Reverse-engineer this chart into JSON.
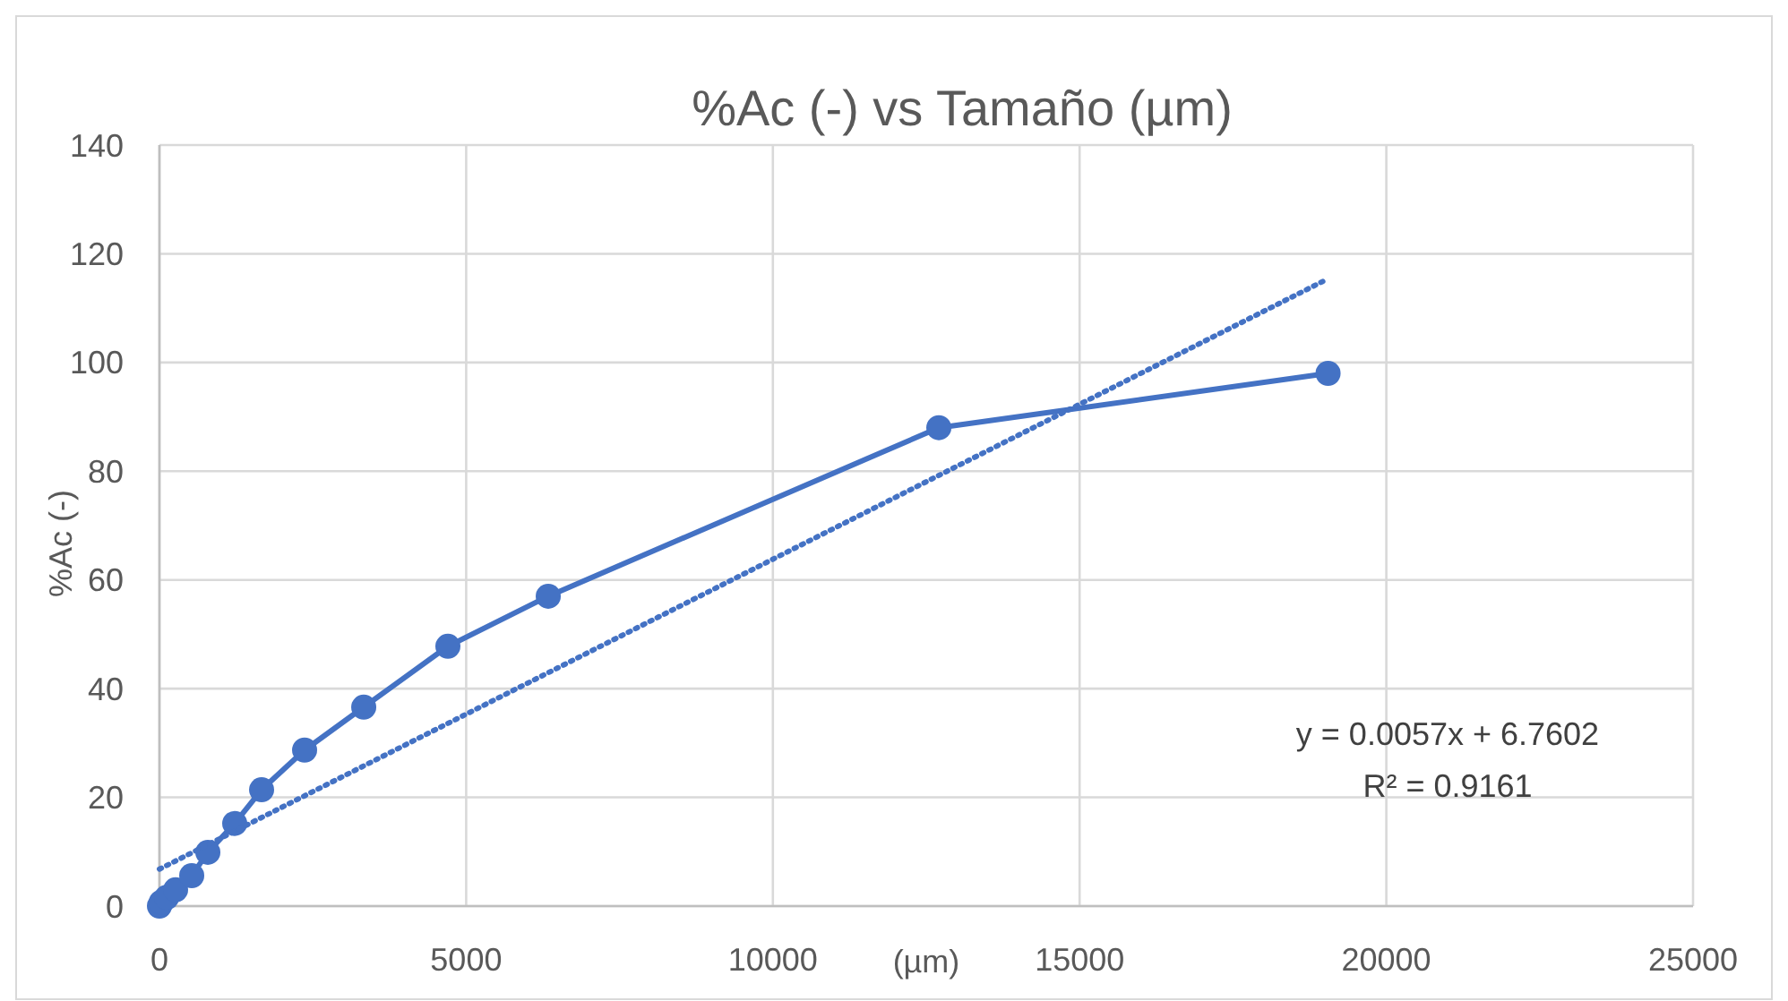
{
  "chart_data": {
    "type": "line",
    "title": "%Ac (-) vs Tamaño (µm)",
    "xlabel": "(µm)",
    "ylabel": "%Ac (-)",
    "xlim": [
      0,
      25000
    ],
    "xticks": [
      0,
      5000,
      10000,
      15000,
      20000,
      25000
    ],
    "ylim": [
      0,
      140
    ],
    "yticks": [
      0,
      20,
      40,
      60,
      80,
      100,
      120,
      140
    ],
    "grid": true,
    "series": [
      {
        "color": "#4472c4",
        "marker": "circle",
        "line_style": "solid",
        "x": [
          0,
          29,
          117,
          263,
          526,
          789,
          1227,
          1665,
          2366,
          3330,
          4702,
          6338,
          12705,
          19050
        ],
        "values": [
          0,
          0.7,
          1.6,
          3.0,
          5.6,
          9.9,
          15.2,
          21.4,
          28.7,
          36.6,
          47.8,
          57.0,
          88,
          98
        ]
      },
      {
        "type": "line",
        "color": "#4472c4",
        "marker": "none",
        "line_style": "dotted",
        "x": [
          0,
          19050
        ],
        "values": [
          6.8,
          115.4
        ]
      }
    ],
    "annotations": [
      "y = 0.0057x + 6.7602",
      "R² = 0.9161"
    ]
  }
}
